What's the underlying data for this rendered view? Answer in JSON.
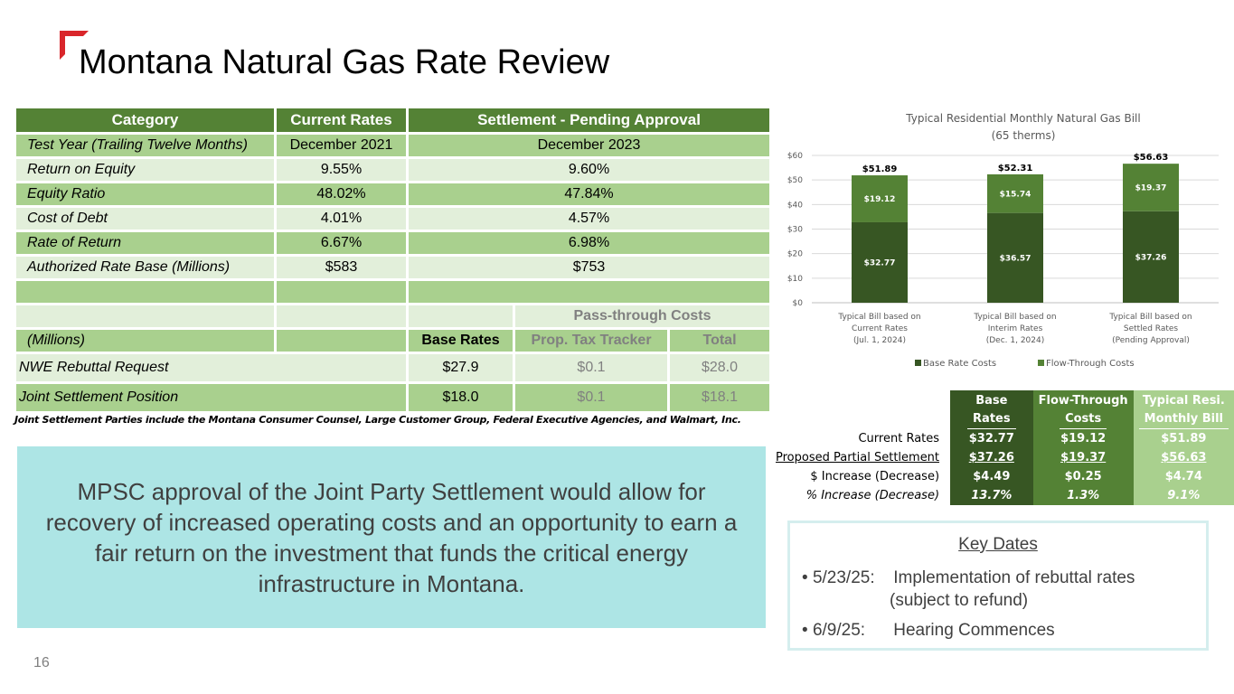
{
  "title": "Montana Natural Gas Rate Review",
  "page_number": "16",
  "brand_color": "#d9262b",
  "rate_table": {
    "headers": [
      "Category",
      "Current Rates",
      "Settlement - Pending Approval"
    ],
    "rows": [
      {
        "category": "Test Year (Trailing Twelve Months)",
        "current": "December 2021",
        "settlement": "December 2023"
      },
      {
        "category": "Return on Equity",
        "current": "9.55%",
        "settlement": "9.60%"
      },
      {
        "category": "Equity Ratio",
        "current": "48.02%",
        "settlement": "47.84%"
      },
      {
        "category": "Cost of Debt",
        "current": "4.01%",
        "settlement": "4.57%"
      },
      {
        "category": "Rate of Return",
        "current": "6.67%",
        "settlement": "6.98%"
      },
      {
        "category": "Authorized Rate Base (Millions)",
        "current": "$583",
        "settlement": "$753"
      }
    ],
    "pass_through_label": "Pass-through Costs",
    "millions_label": "(Millions)",
    "sub_headers": [
      "Base Rates",
      "Prop. Tax Tracker",
      "Total"
    ],
    "requests": [
      {
        "label": "NWE Rebuttal Request",
        "base": "$27.9",
        "tracker": "$0.1",
        "total": "$28.0"
      },
      {
        "label": "Joint Settlement Position",
        "base": "$18.0",
        "tracker": "$0.1",
        "total": "$18.1"
      }
    ]
  },
  "footnote": "Joint Settlement Parties include the Montana Consumer Counsel, Large Customer Group, Federal Executive Agencies, and Walmart, Inc.",
  "callout": "MPSC approval of the Joint Party Settlement would allow for recovery of increased operating costs and an opportunity to earn a fair return on the investment that funds the critical energy infrastructure in Montana.",
  "chart_data": {
    "type": "bar",
    "stacked": true,
    "title": "Typical Residential Monthly Natural Gas Bill",
    "subtitle": "(65 therms)",
    "categories": [
      [
        "Typical Bill based on",
        "Current Rates",
        "(Jul. 1, 2024)"
      ],
      [
        "Typical Bill based on",
        "Interim Rates",
        "(Dec. 1, 2024)"
      ],
      [
        "Typical Bill based on",
        "Settled Rates",
        "(Pending Approval)"
      ]
    ],
    "series": [
      {
        "name": "Base Rate Costs",
        "color": "#375623",
        "values": [
          32.77,
          36.57,
          37.26
        ],
        "labels": [
          "$32.77",
          "$36.57",
          "$37.26"
        ]
      },
      {
        "name": "Flow-Through Costs",
        "color": "#548235",
        "values": [
          19.12,
          15.74,
          19.37
        ],
        "labels": [
          "$19.12",
          "$15.74",
          "$19.37"
        ]
      }
    ],
    "totals": [
      "$51.89",
      "$52.31",
      "$56.63"
    ],
    "ylim": [
      0,
      60
    ],
    "yticks": [
      "$0",
      "$10",
      "$20",
      "$30",
      "$40",
      "$50",
      "$60"
    ],
    "grid": true,
    "legend": "bottom"
  },
  "summary_table": {
    "headers": [
      [
        "Base",
        "Rates"
      ],
      [
        "Flow-Through",
        "Costs"
      ],
      [
        "Typical Resi.",
        "Monthly Bill"
      ]
    ],
    "rows": [
      {
        "label": "Current Rates",
        "values": [
          "$32.77",
          "$19.12",
          "$51.89"
        ]
      },
      {
        "label": "Proposed Partial Settlement",
        "values": [
          "$37.26",
          "$19.37",
          "$56.63"
        ]
      },
      {
        "label": "$ Increase (Decrease)",
        "values": [
          "$4.49",
          "$0.25",
          "$4.74"
        ]
      },
      {
        "label": "% Increase (Decrease)",
        "values": [
          "13.7%",
          "1.3%",
          "9.1%"
        ]
      }
    ]
  },
  "key_dates": {
    "title": "Key Dates",
    "items": [
      {
        "date": "5/23/25:",
        "text": "Implementation of rebuttal rates",
        "cont": "(subject to refund)"
      },
      {
        "date": "6/9/25:",
        "text": "Hearing Commences"
      }
    ]
  }
}
